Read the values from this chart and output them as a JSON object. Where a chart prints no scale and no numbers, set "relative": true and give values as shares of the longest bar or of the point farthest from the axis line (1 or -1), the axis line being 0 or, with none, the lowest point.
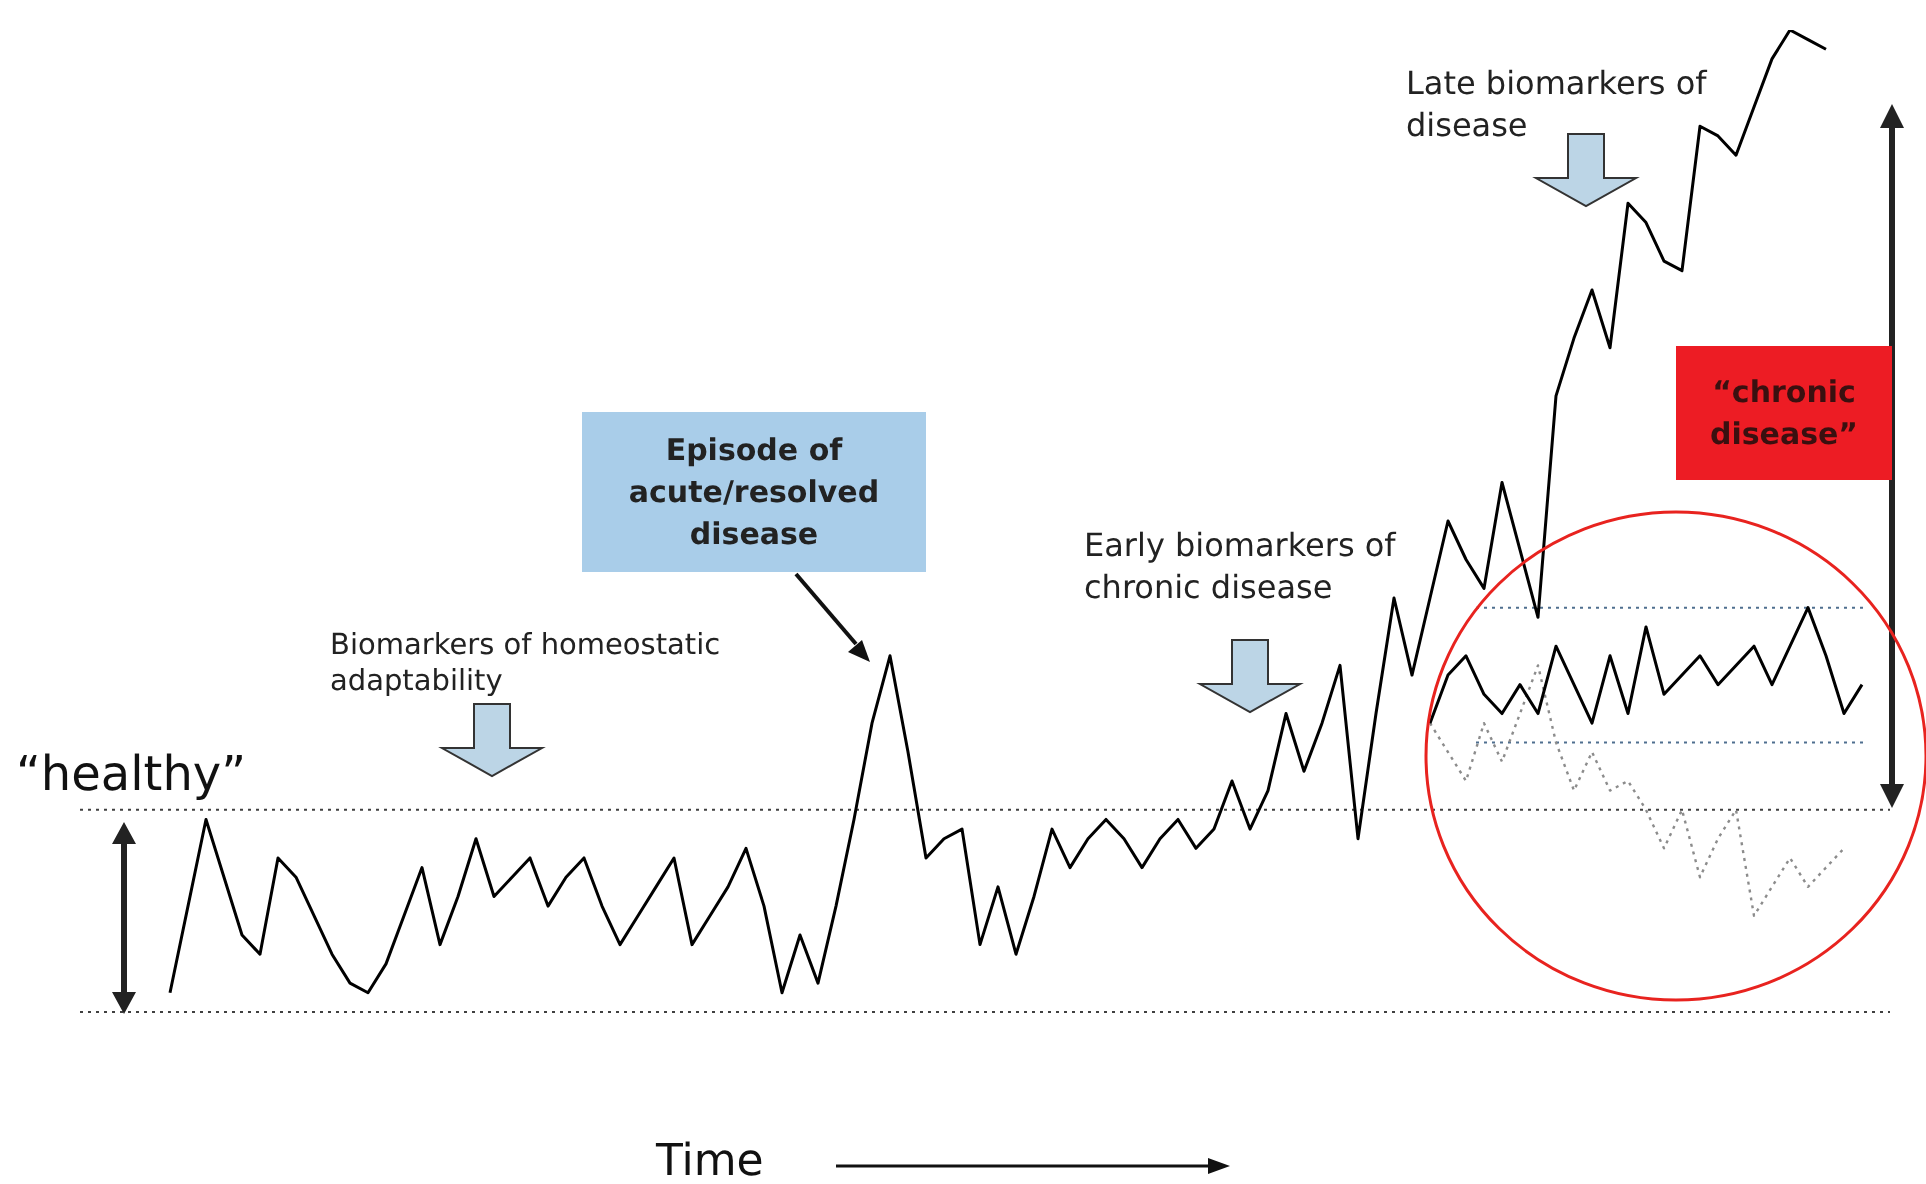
{
  "chart_data": {
    "type": "line",
    "relative": true,
    "xlabel": "Time",
    "grid": false,
    "legend": false,
    "marker": "none",
    "categories": [
      null,
      null,
      null,
      null,
      null,
      null,
      null,
      null,
      null,
      null,
      null,
      null,
      null,
      null,
      null,
      null,
      null,
      null,
      null,
      null,
      null,
      null,
      null,
      null,
      null,
      null,
      null,
      null,
      null,
      null,
      null,
      null,
      null,
      null,
      null,
      null,
      null,
      null,
      null,
      null,
      null,
      null,
      null,
      null,
      null,
      null,
      null,
      null,
      null,
      null,
      null,
      null,
      null,
      null,
      null,
      null,
      null,
      null,
      null,
      null,
      null,
      null,
      null,
      null,
      null,
      null,
      null,
      null,
      null,
      null,
      null,
      null,
      null,
      null,
      null,
      null,
      null,
      null,
      null,
      null,
      null,
      null,
      null,
      null,
      null,
      null,
      null,
      null,
      null,
      null,
      null,
      null,
      null,
      null,
      null,
      null,
      null,
      null,
      null,
      null,
      null
    ],
    "series": [
      {
        "color": "#000000",
        "line_style": "solid",
        "values": [
          null,
          null,
          null,
          null,
          null,
          0,
          0.09,
          0.18,
          0.12,
          0.06,
          0.04,
          0.14,
          0.12,
          0.08,
          0.04,
          0.01,
          0,
          0.03,
          0.08,
          0.13,
          0.05,
          0.1,
          0.16,
          0.1,
          0.12,
          0.14,
          0.09,
          0.12,
          0.14,
          0.09,
          0.05,
          0.08,
          0.11,
          0.14,
          0.05,
          0.08,
          0.11,
          0.15,
          0.09,
          0.0,
          0.06,
          0.01,
          0.09,
          0.18,
          0.28,
          0.35,
          0.25,
          0.14,
          0.16,
          0.17,
          0.05,
          0.11,
          0.04,
          0.1,
          0.17,
          0.13,
          0.16,
          0.18,
          0.16,
          0.13,
          0.16,
          0.18,
          0.15,
          0.17,
          0.22,
          0.17,
          0.21,
          0.29,
          0.23,
          0.28,
          0.34,
          0.16,
          0.29,
          0.41,
          0.33,
          0.41,
          0.49,
          0.45,
          0.42,
          0.53,
          0.46,
          0.39,
          0.62,
          0.68,
          0.73,
          0.67,
          0.82,
          0.8,
          0.76,
          0.75,
          0.9,
          0.89,
          0.87,
          0.92,
          0.97,
          1,
          0.99,
          0.98,
          null,
          null,
          null
        ]
      },
      {
        "color": "#000000",
        "line_style": "solid",
        "values": [
          null,
          null,
          null,
          null,
          null,
          null,
          null,
          null,
          null,
          null,
          null,
          null,
          null,
          null,
          null,
          null,
          null,
          null,
          null,
          null,
          null,
          null,
          null,
          null,
          null,
          null,
          null,
          null,
          null,
          null,
          null,
          null,
          null,
          null,
          null,
          null,
          null,
          null,
          null,
          null,
          null,
          null,
          null,
          null,
          null,
          null,
          null,
          null,
          null,
          null,
          null,
          null,
          null,
          null,
          null,
          null,
          null,
          null,
          null,
          null,
          null,
          null,
          null,
          null,
          null,
          null,
          null,
          null,
          null,
          null,
          null,
          null,
          null,
          null,
          null,
          0.28,
          0.33,
          0.35,
          0.31,
          0.29,
          0.32,
          0.29,
          0.36,
          0.32,
          0.28,
          0.35,
          0.29,
          0.38,
          0.31,
          0.33,
          0.35,
          0.32,
          0.34,
          0.36,
          0.32,
          0.36,
          0.4,
          0.35,
          0.29,
          0.32,
          null
        ]
      },
      {
        "color": "#8c8c8c",
        "line_style": "dotted",
        "values": [
          null,
          null,
          null,
          null,
          null,
          null,
          null,
          null,
          null,
          null,
          null,
          null,
          null,
          null,
          null,
          null,
          null,
          null,
          null,
          null,
          null,
          null,
          null,
          null,
          null,
          null,
          null,
          null,
          null,
          null,
          null,
          null,
          null,
          null,
          null,
          null,
          null,
          null,
          null,
          null,
          null,
          null,
          null,
          null,
          null,
          null,
          null,
          null,
          null,
          null,
          null,
          null,
          null,
          null,
          null,
          null,
          null,
          null,
          null,
          null,
          null,
          null,
          null,
          null,
          null,
          null,
          null,
          null,
          null,
          null,
          null,
          null,
          null,
          null,
          null,
          0.28,
          0.25,
          0.22,
          0.28,
          0.24,
          0.29,
          0.34,
          0.26,
          0.21,
          0.25,
          0.21,
          0.22,
          0.19,
          0.15,
          0.19,
          0.12,
          0.16,
          0.19,
          0.08,
          0.11,
          0.14,
          0.11,
          0.13,
          0.15,
          null,
          null
        ]
      }
    ],
    "ref_lines": [
      {
        "axis": "y",
        "value": 0.19,
        "label": "“healthy”",
        "color": "#404040",
        "line_style": "dotted"
      },
      {
        "axis": "y",
        "value": -0.02,
        "color": "#404040",
        "line_style": "dotted"
      },
      {
        "axis": "y",
        "value": 0.4,
        "color": "#4f6f8f",
        "line_style": "dotted"
      },
      {
        "axis": "y",
        "value": 0.26,
        "color": "#4f6f8f",
        "line_style": "dotted"
      }
    ],
    "annotations": [
      "Biomarkers of homeostatic adaptability",
      "Episode of acute/resolved disease",
      "Early biomarkers of chronic disease",
      "Late biomarkers of disease",
      "“chronic disease”"
    ]
  }
}
